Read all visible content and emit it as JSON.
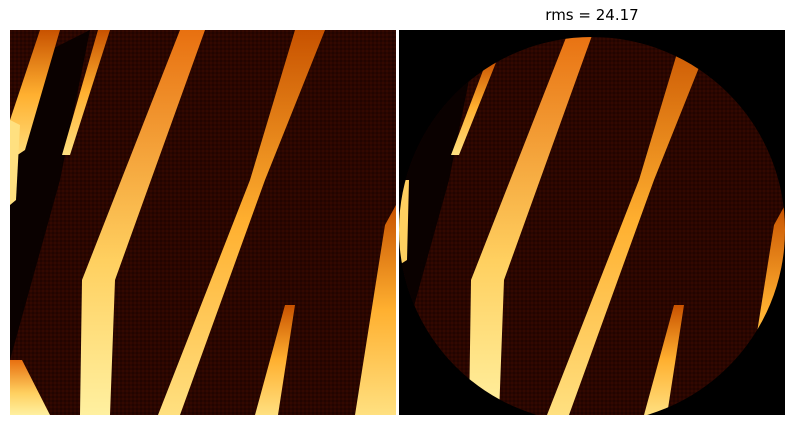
{
  "figure": {
    "right_panel": {
      "title": "rms = 24.17",
      "mask": "circular",
      "background_color": "#000000"
    },
    "colormap": "afmhot",
    "colors": {
      "background": "#2a0600",
      "dark_band": "#000000",
      "mid": "#a63a00",
      "bright": "#ff9a1a",
      "highlight": "#ffe890"
    }
  }
}
